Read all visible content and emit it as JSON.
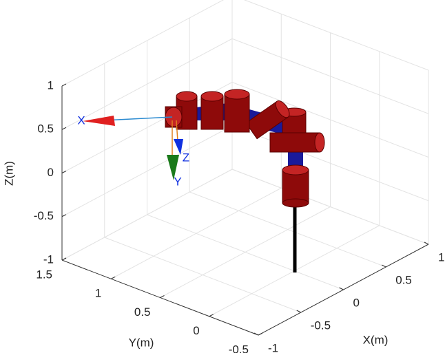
{
  "chart_data": {
    "type": "3d",
    "xlabel": "X(m)",
    "ylabel": "Y(m)",
    "zlabel": "Z(m)",
    "xlim": [
      -1,
      1
    ],
    "ylim": [
      -0.5,
      1.5
    ],
    "zlim": [
      -1,
      1
    ],
    "xticks": [
      -1,
      -0.5,
      0,
      0.5,
      1
    ],
    "yticks": [
      -0.5,
      0,
      0.5,
      1,
      1.5
    ],
    "zticks": [
      -1,
      -0.5,
      0,
      0.5,
      1
    ],
    "grid": true,
    "frame_labels": [
      "X",
      "Y",
      "Z"
    ]
  }
}
